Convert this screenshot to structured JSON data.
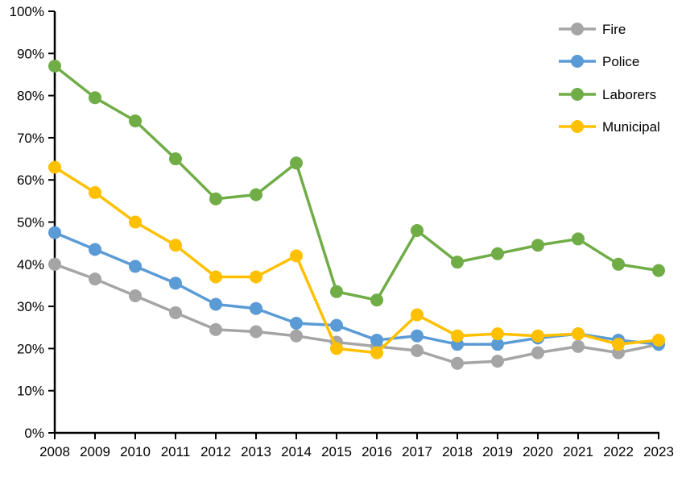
{
  "chart_data": {
    "type": "line",
    "title": "",
    "xlabel": "",
    "ylabel": "",
    "categories": [
      "2008",
      "2009",
      "2010",
      "2011",
      "2012",
      "2013",
      "2014",
      "2015",
      "2016",
      "2017",
      "2018",
      "2019",
      "2020",
      "2021",
      "2022",
      "2023"
    ],
    "series": [
      {
        "name": "Fire",
        "color": "#A5A5A5",
        "values": [
          40,
          36.5,
          32.5,
          28.5,
          24.5,
          24,
          23,
          21.5,
          20.5,
          19.5,
          16.5,
          17,
          19,
          20.5,
          19,
          21
        ]
      },
      {
        "name": "Police",
        "color": "#5B9BD5",
        "values": [
          47.5,
          43.5,
          39.5,
          35.5,
          30.5,
          29.5,
          26,
          25.5,
          22,
          23,
          21,
          21,
          22.5,
          23.5,
          22,
          21
        ]
      },
      {
        "name": "Laborers",
        "color": "#70AD47",
        "values": [
          87,
          79.5,
          74,
          65,
          55.5,
          56.5,
          64,
          33.5,
          31.5,
          48,
          40.5,
          42.5,
          44.5,
          46,
          40,
          38.5
        ]
      },
      {
        "name": "Municipal",
        "color": "#FFC000",
        "values": [
          63,
          57,
          50,
          44.5,
          37,
          37,
          42,
          20,
          19,
          28,
          23,
          23.5,
          23,
          23.5,
          21,
          22
        ]
      }
    ],
    "y_ticks": [
      "0%",
      "10%",
      "20%",
      "30%",
      "40%",
      "50%",
      "60%",
      "70%",
      "80%",
      "90%",
      "100%"
    ],
    "ylim": [
      0,
      100
    ],
    "axis_color": "#000000",
    "grid": false,
    "legend_position": "top-right"
  }
}
